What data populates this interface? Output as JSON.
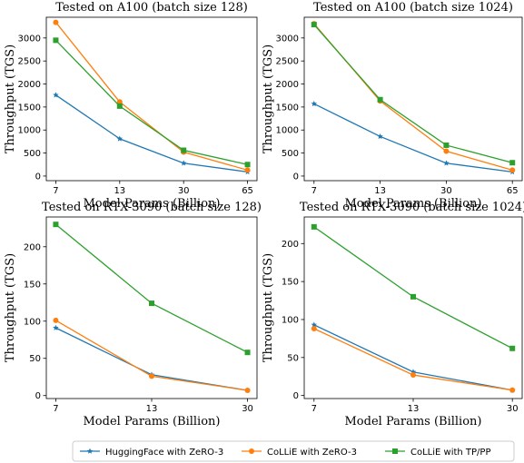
{
  "legend": [
    {
      "label": "HuggingFace with ZeRO-3",
      "color": "#1f77b4",
      "marker": "star"
    },
    {
      "label": "CoLLiE with ZeRO-3",
      "color": "#ff7f0e",
      "marker": "circle"
    },
    {
      "label": "CoLLiE with TP/PP",
      "color": "#2ca02c",
      "marker": "square"
    }
  ],
  "chart_data": [
    {
      "type": "line",
      "title": "Tested on A100 (batch size 128)",
      "xlabel": "Model Params (Billion)",
      "ylabel": "Throughput (TGS)",
      "categories": [
        "7",
        "13",
        "30",
        "65"
      ],
      "ylim": [
        -100,
        3450
      ],
      "yticks": [
        0,
        500,
        1000,
        1500,
        2000,
        2500,
        3000
      ],
      "grid": false,
      "series": [
        {
          "name": "HuggingFace with ZeRO-3",
          "values": [
            1760,
            810,
            280,
            90
          ]
        },
        {
          "name": "CoLLiE with ZeRO-3",
          "values": [
            3340,
            1610,
            520,
            130
          ]
        },
        {
          "name": "CoLLiE with TP/PP",
          "values": [
            2950,
            1520,
            560,
            250
          ]
        }
      ]
    },
    {
      "type": "line",
      "title": "Tested on A100 (batch size 1024)",
      "xlabel": "Model Params (Billion)",
      "ylabel": "Throughput (TGS)",
      "categories": [
        "7",
        "13",
        "30",
        "65"
      ],
      "ylim": [
        -100,
        3450
      ],
      "yticks": [
        0,
        500,
        1000,
        1500,
        2000,
        2500,
        3000
      ],
      "grid": false,
      "series": [
        {
          "name": "HuggingFace with ZeRO-3",
          "values": [
            1570,
            860,
            280,
            90
          ]
        },
        {
          "name": "CoLLiE with ZeRO-3",
          "values": [
            3310,
            1630,
            540,
            130
          ]
        },
        {
          "name": "CoLLiE with TP/PP",
          "values": [
            3290,
            1660,
            670,
            290
          ]
        }
      ]
    },
    {
      "type": "line",
      "title": "Tested on RTX-3090 (batch size 128)",
      "xlabel": "Model Params (Billion)",
      "ylabel": "Throughput (TGS)",
      "categories": [
        "7",
        "13",
        "30"
      ],
      "ylim": [
        -4,
        240
      ],
      "yticks": [
        0,
        50,
        100,
        150,
        200
      ],
      "grid": false,
      "series": [
        {
          "name": "HuggingFace with ZeRO-3",
          "values": [
            91,
            28,
            7
          ]
        },
        {
          "name": "CoLLiE with ZeRO-3",
          "values": [
            101,
            26,
            7
          ]
        },
        {
          "name": "CoLLiE with TP/PP",
          "values": [
            230,
            124,
            58
          ]
        }
      ]
    },
    {
      "type": "line",
      "title": "Tested on RTX-3090 (batch size 1024)",
      "xlabel": "Model Params (Billion)",
      "ylabel": "Throughput (TGS)",
      "categories": [
        "7",
        "13",
        "30"
      ],
      "ylim": [
        -4,
        235
      ],
      "yticks": [
        0,
        50,
        100,
        150,
        200
      ],
      "grid": false,
      "series": [
        {
          "name": "HuggingFace with ZeRO-3",
          "values": [
            93,
            31,
            7
          ]
        },
        {
          "name": "CoLLiE with ZeRO-3",
          "values": [
            88,
            27,
            7
          ]
        },
        {
          "name": "CoLLiE with TP/PP",
          "values": [
            222,
            130,
            62
          ]
        }
      ]
    }
  ]
}
